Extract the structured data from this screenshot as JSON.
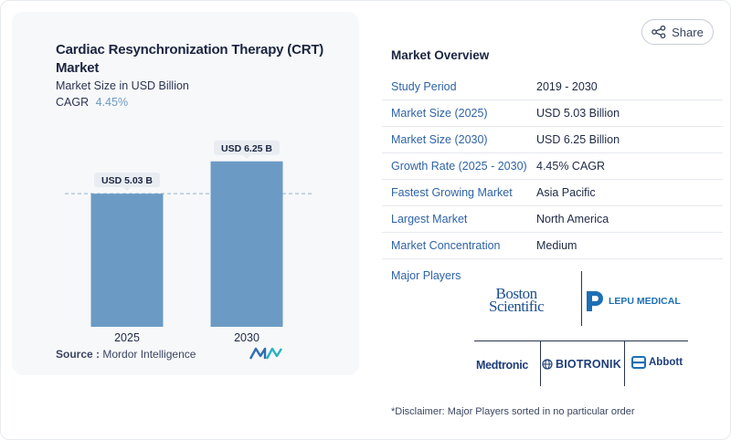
{
  "chart_data": {
    "type": "bar",
    "title": "Cardiac Resynchronization Therapy (CRT) Market",
    "subtitle": "Market Size in USD Billion",
    "cagr_label": "CAGR",
    "cagr_value": "4.45%",
    "categories": [
      "2025",
      "2030"
    ],
    "values": [
      5.03,
      6.25
    ],
    "data_labels": [
      "USD 5.03 B",
      "USD 6.25 B"
    ],
    "ylim": [
      0,
      7.0
    ],
    "bar_color": "#6b9bc4",
    "dashed_reference_at": 5.03,
    "grid": false
  },
  "source": {
    "label": "Source :",
    "value": "Mordor Intelligence",
    "logo_icon": "mordor-intelligence-logo"
  },
  "share": {
    "label": "Share",
    "icon": "share-icon"
  },
  "overview": {
    "title": "Market Overview",
    "rows": [
      {
        "key": "Study Period",
        "value": "2019 - 2030"
      },
      {
        "key": "Market Size (2025)",
        "value": "USD 5.03 Billion"
      },
      {
        "key": "Market Size (2030)",
        "value": "USD 6.25 Billion"
      },
      {
        "key": "Growth Rate (2025 - 2030)",
        "value": "4.45% CAGR"
      },
      {
        "key": "Fastest Growing Market",
        "value": "Asia Pacific"
      },
      {
        "key": "Largest Market",
        "value": "North America"
      },
      {
        "key": "Market Concentration",
        "value": "Medium"
      }
    ]
  },
  "players": {
    "label": "Major Players",
    "logos": {
      "boston_line1": "Boston",
      "boston_line2": "Scientific",
      "lepu": "LEPU MEDICAL",
      "medtronic": "Medtronic",
      "biotronik": "BIOTRONIK",
      "abbott": "Abbott"
    }
  },
  "disclaimer": "*Disclaimer: Major Players sorted in no particular order",
  "colors": {
    "accent": "#2e63a6",
    "bar": "#6b9bc4",
    "cagr": "#6f9bc0"
  }
}
